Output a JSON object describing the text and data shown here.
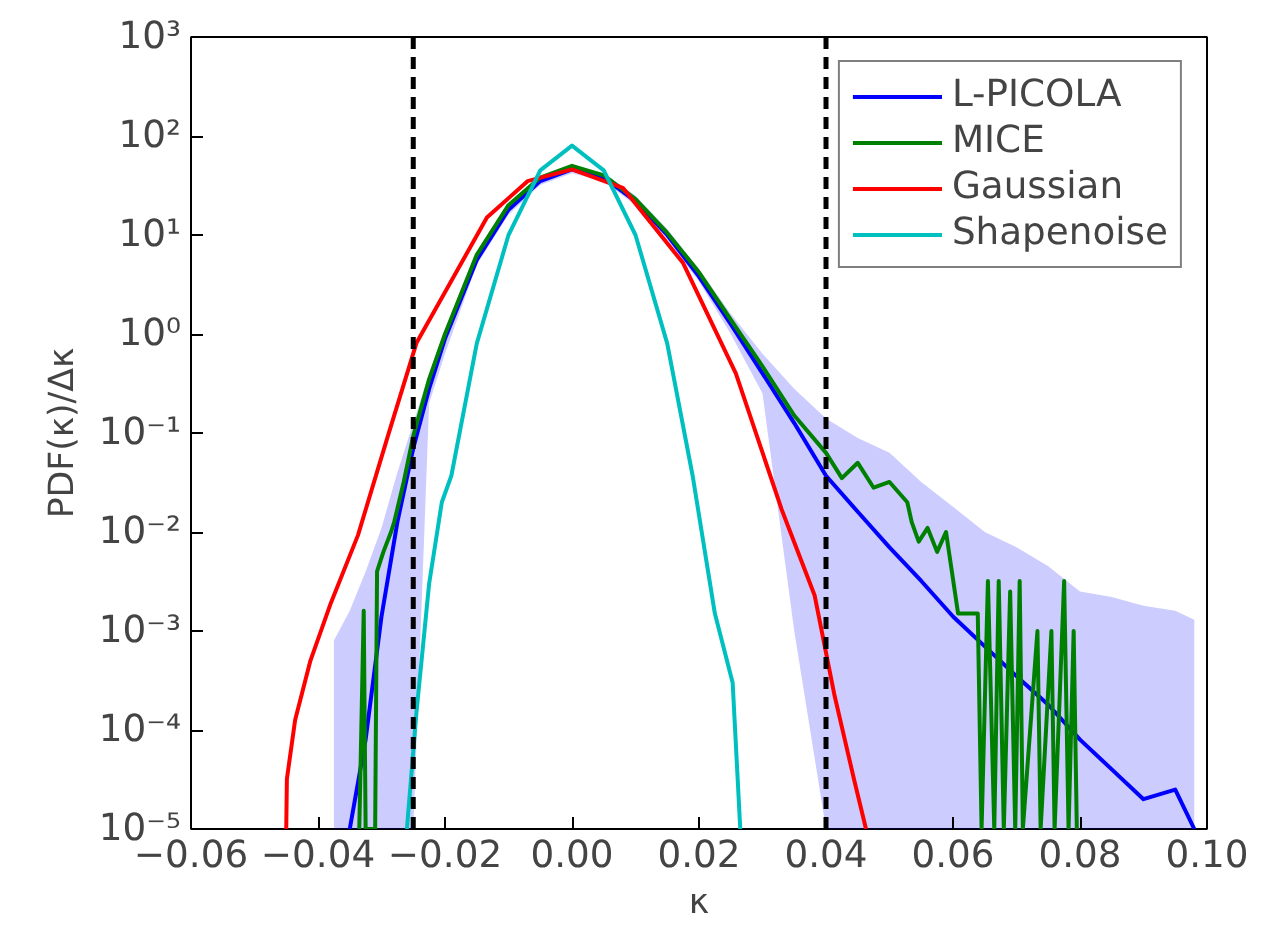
{
  "chart_data": {
    "type": "line",
    "xlabel": "κ",
    "ylabel": "PDF(κ)/Δκ",
    "log": "y",
    "grid": false,
    "legend": "top right",
    "marker": "none",
    "line_style": "solid",
    "xlim": [
      -0.06,
      0.1
    ],
    "xticks": [
      {
        "value": -0.06,
        "label": "−0.06"
      },
      {
        "value": -0.04,
        "label": "−0.04"
      },
      {
        "value": -0.02,
        "label": "−0.02"
      },
      {
        "value": 0,
        "label": "0.00"
      },
      {
        "value": 0.02,
        "label": "0.02"
      },
      {
        "value": 0.04,
        "label": "0.04"
      },
      {
        "value": 0.06,
        "label": "0.06"
      },
      {
        "value": 0.08,
        "label": "0.08"
      },
      {
        "value": 0.1,
        "label": "0.10"
      }
    ],
    "ylim": [
      1e-05,
      1000
    ],
    "yticks": [
      {
        "value": 1e-05,
        "label": "10⁻⁵"
      },
      {
        "value": 0.0001,
        "label": "10⁻⁴"
      },
      {
        "value": 0.001,
        "label": "10⁻³"
      },
      {
        "value": 0.01,
        "label": "10⁻²"
      },
      {
        "value": 0.1,
        "label": "10⁻¹"
      },
      {
        "value": 1,
        "label": "10⁰"
      },
      {
        "value": 10,
        "label": "10¹"
      },
      {
        "value": 100,
        "label": "10²"
      },
      {
        "value": 1000,
        "label": "10³"
      }
    ],
    "ref_lines": [
      {
        "axis": "x",
        "value": -0.025,
        "color": "#000000",
        "line_style": "dashed"
      },
      {
        "axis": "x",
        "value": 0.04,
        "color": "#000000",
        "line_style": "dashed"
      }
    ],
    "series": [
      {
        "name": "L-PICOLA",
        "color": "#0000ff",
        "x": [
          -0.0375,
          -0.035,
          -0.0325,
          -0.03,
          -0.0275,
          -0.025,
          -0.0225,
          -0.02,
          -0.015,
          -0.01,
          -0.005,
          0,
          0.005,
          0.01,
          0.015,
          0.02,
          0.025,
          0.03,
          0.035,
          0.04,
          0.045,
          0.05,
          0.055,
          0.06,
          0.065,
          0.07,
          0.075,
          0.08,
          0.085,
          0.09,
          0.095,
          0.098
        ],
        "values": [
          null,
          1e-05,
          8e-05,
          0.0014,
          0.0126,
          0.07,
          0.28,
          0.9,
          5.6,
          18,
          35,
          46,
          38,
          22,
          10,
          3.8,
          1.26,
          0.4,
          0.126,
          0.037,
          0.016,
          0.007,
          0.0032,
          0.0014,
          0.0007,
          0.00035,
          0.00018,
          8e-05,
          4e-05,
          2e-05,
          2.5e-05,
          1e-05
        ],
        "lower": [
          1e-05,
          1e-05,
          1e-05,
          1e-05,
          1e-05,
          1e-05,
          0.2,
          0.63,
          5,
          16,
          32,
          42,
          35,
          20,
          9,
          3.4,
          1,
          0.25,
          0.001,
          1e-05,
          1e-05,
          1e-05,
          1e-05,
          1e-05,
          1e-05,
          1e-05,
          1e-05,
          1e-05,
          1e-05,
          1e-05,
          1e-05,
          1e-05
        ],
        "upper": [
          0.0008,
          0.0016,
          0.004,
          0.011,
          0.04,
          0.126,
          0.4,
          1.1,
          6.3,
          20,
          38,
          50,
          42,
          25,
          11.5,
          4.5,
          1.6,
          0.63,
          0.28,
          0.14,
          0.089,
          0.063,
          0.032,
          0.018,
          0.01,
          0.007,
          0.0045,
          0.0025,
          0.0022,
          0.0018,
          0.0016,
          0.0013
        ]
      },
      {
        "name": "MICE",
        "color": "#008000",
        "x": [
          -0.0335,
          -0.0328,
          -0.0325,
          -0.031,
          -0.0307,
          -0.0297,
          -0.0285,
          -0.028,
          -0.0265,
          -0.025,
          -0.0225,
          -0.02,
          -0.015,
          -0.01,
          -0.005,
          0,
          0.005,
          0.01,
          0.015,
          0.02,
          0.025,
          0.03,
          0.035,
          0.04,
          0.0425,
          0.045,
          0.0475,
          0.05,
          0.0528,
          0.0535,
          0.0546,
          0.056,
          0.0575,
          0.0589,
          0.0608,
          0.0639,
          0.0645,
          0.0655,
          0.0665,
          0.0672,
          0.068,
          0.069,
          0.0698,
          0.0705,
          0.071,
          0.0733,
          0.0738,
          0.0755,
          0.076,
          0.0775,
          0.0782,
          0.079,
          0.0795
        ],
        "values": [
          1e-05,
          0.0016,
          1e-05,
          1e-05,
          0.004,
          0.0063,
          0.01,
          0.0126,
          0.032,
          0.093,
          0.35,
          1,
          6.3,
          20,
          38,
          50,
          40,
          23,
          10.5,
          4.2,
          1.4,
          0.47,
          0.15,
          0.063,
          0.035,
          0.05,
          0.028,
          0.032,
          0.02,
          0.0126,
          0.008,
          0.011,
          0.0063,
          0.01,
          0.0015,
          0.0015,
          1e-05,
          0.0032,
          1e-05,
          0.0032,
          1e-05,
          0.0025,
          1e-05,
          0.0032,
          1e-05,
          0.001,
          1e-05,
          0.001,
          1e-05,
          0.0032,
          1e-05,
          0.001,
          1e-05
        ]
      },
      {
        "name": "Gaussian",
        "color": "#ff0000",
        "x": [
          -0.045,
          -0.0449,
          -0.0436,
          -0.0412,
          -0.038,
          -0.0337,
          -0.029,
          -0.0245,
          -0.0134,
          -0.007,
          0,
          0.008,
          0.0175,
          0.0258,
          0.033,
          0.0382,
          0.0413,
          0.0444,
          0.0463
        ],
        "values": [
          1e-05,
          3.2e-05,
          0.000126,
          0.0005,
          0.0019,
          0.0093,
          0.093,
          0.81,
          15,
          35,
          46,
          30,
          5.2,
          0.4,
          0.017,
          0.0023,
          0.00023,
          3.2e-05,
          1e-05
        ]
      },
      {
        "name": "Shapenoise",
        "color": "#00bfbf",
        "x": [
          -0.026,
          -0.0245,
          -0.0225,
          -0.0205,
          -0.019,
          -0.015,
          -0.01,
          -0.005,
          0,
          0.005,
          0.01,
          0.015,
          0.019,
          0.0225,
          0.0253,
          0.0265
        ],
        "values": [
          1e-05,
          0.00015,
          0.003,
          0.02,
          0.037,
          0.8,
          10,
          45,
          80,
          45,
          10,
          0.8,
          0.037,
          0.0015,
          0.0003,
          1e-05
        ]
      }
    ]
  }
}
